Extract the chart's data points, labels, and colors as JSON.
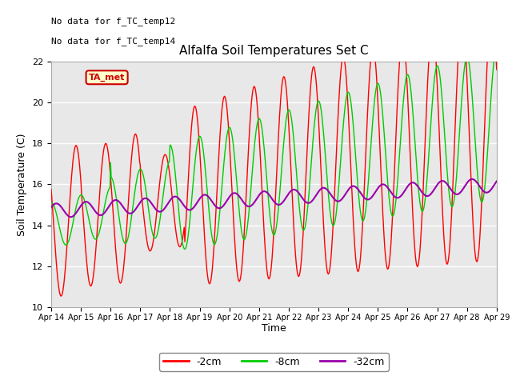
{
  "title": "Alfalfa Soil Temperatures Set C",
  "xlabel": "Time",
  "ylabel": "Soil Temperature (C)",
  "ylim": [
    10,
    22
  ],
  "yticks": [
    10,
    12,
    14,
    16,
    18,
    20,
    22
  ],
  "xtick_labels": [
    "Apr 14",
    "Apr 15",
    "Apr 16",
    "Apr 17",
    "Apr 18",
    "Apr 19",
    "Apr 20",
    "Apr 21",
    "Apr 22",
    "Apr 23",
    "Apr 24",
    "Apr 25",
    "Apr 26",
    "Apr 27",
    "Apr 28",
    "Apr 29"
  ],
  "color_2cm": "#ff0000",
  "color_8cm": "#00cc00",
  "color_32cm": "#9900aa",
  "legend_labels": [
    "-2cm",
    "-8cm",
    "-32cm"
  ],
  "note_line1": "No data for f_TC_temp12",
  "note_line2": "No data for f_TC_temp14",
  "ta_met_label": "TA_met",
  "ta_met_color": "#cc0000",
  "ta_met_bg": "#ffffcc",
  "background_color": "#e8e8e8"
}
